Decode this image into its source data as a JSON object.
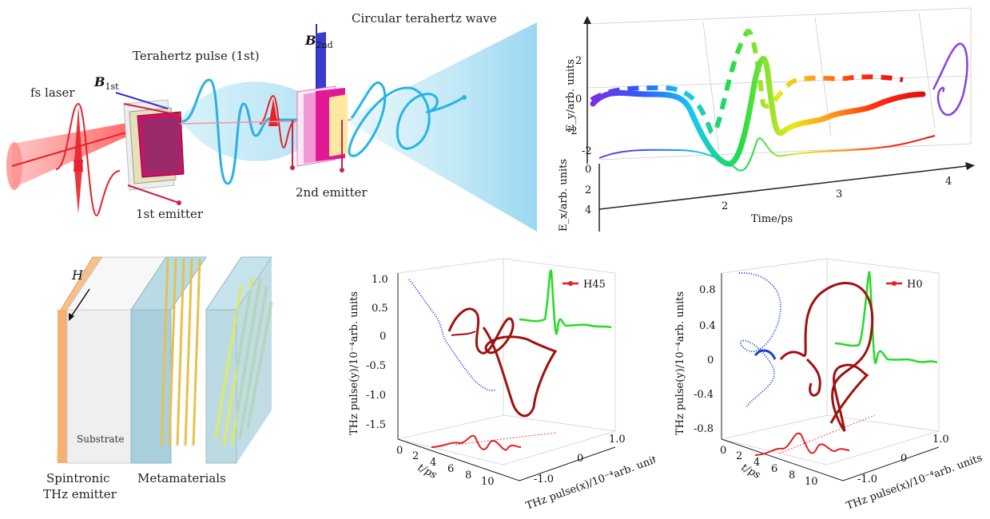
{
  "panel_a": {
    "labels": {
      "fs_laser": "fs laser",
      "b1_main": "B",
      "b1_sub": "1st",
      "b2_main": "B",
      "b2_sub": "2nd",
      "thz_pulse": "Terahertz pulse (1st)",
      "circular": "Circular terahertz wave",
      "emitter1": "1st emitter",
      "emitter2": "2nd emitter"
    }
  },
  "panel_b": {
    "xlabel": "Time/ps",
    "ylabel_x": "E_x/arb. units",
    "ylabel_y": "E_y/arb. units",
    "x_ticks": [
      "2",
      "3",
      "4"
    ],
    "ex_ticks": [
      "-2",
      "0",
      "2",
      "4"
    ],
    "ey_ticks": [
      "2",
      "0",
      "-2"
    ]
  },
  "panel_c": {
    "labels": {
      "h": "H",
      "substrate": "Substrate",
      "spintronic": "Spintronic",
      "thz_emitter": "THz emitter",
      "metamaterials": "Metamaterials"
    }
  },
  "panel_d": {
    "legend": "H45",
    "y_ticks": [
      "1.0",
      "0.5",
      "0",
      "-0.5",
      "-1.0",
      "-1.5"
    ],
    "t_ticks": [
      "0",
      "2",
      "4",
      "6",
      "8",
      "10"
    ],
    "x_ticks": [
      "1.0",
      "0",
      "-1.0"
    ],
    "ylabel": "THz pulse(y)/10⁻⁴arb. units",
    "tlabel": "t/ps",
    "xlabel": "THz pulse(x)/10⁻⁴arb. units"
  },
  "panel_e": {
    "legend": "H0",
    "y_ticks": [
      "0.8",
      "0.4",
      "0",
      "-0.4",
      "-0.8"
    ],
    "t_ticks": [
      "0",
      "2",
      "4",
      "6",
      "8",
      "10"
    ],
    "x_ticks": [
      "1.0",
      "0",
      "-1.0"
    ],
    "ylabel": "THz pulse(y)/10⁻⁴arb. units",
    "tlabel": "t/ps",
    "xlabel": "THz pulse(x)/10⁻⁴arb. units"
  },
  "colors": {
    "laser_red": "#e8202a",
    "thz_cyan": "#2bb0e0",
    "blue_trace": "#1f3fd8",
    "dark_red_trace": "#a01010",
    "green_trace": "#22dd22",
    "red_trace": "#e02020",
    "purple": "#8a3fe0",
    "substrate_gray": "#efefef",
    "emitter_orange": "#f6c08a",
    "meta_blue": "#9fc9d8",
    "meta_wire_yellow": "#dde86a"
  }
}
